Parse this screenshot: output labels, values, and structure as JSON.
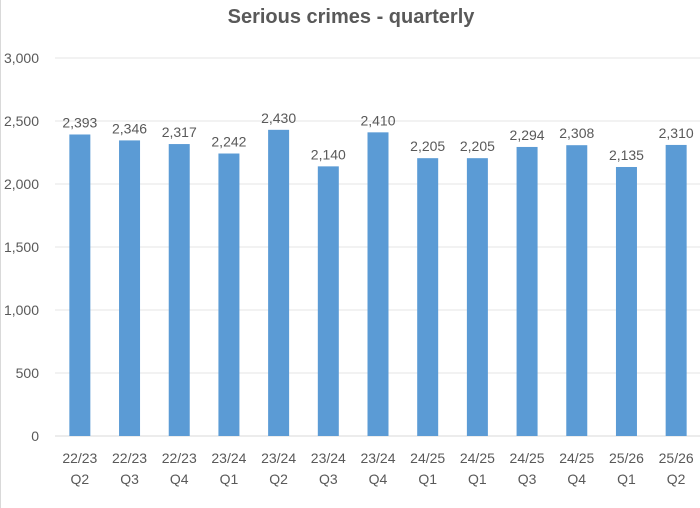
{
  "chart_data": {
    "type": "bar",
    "title": "Serious crimes - quarterly",
    "categories": [
      [
        "22/23",
        "Q2"
      ],
      [
        "22/23",
        "Q3"
      ],
      [
        "22/23",
        "Q4"
      ],
      [
        "23/24",
        "Q1"
      ],
      [
        "23/24",
        "Q2"
      ],
      [
        "23/24",
        "Q3"
      ],
      [
        "23/24",
        "Q4"
      ],
      [
        "24/25",
        "Q1"
      ],
      [
        "24/25",
        "Q1"
      ],
      [
        "24/25",
        "Q3"
      ],
      [
        "24/25",
        "Q4"
      ],
      [
        "25/26",
        "Q1"
      ],
      [
        "25/26",
        "Q2"
      ]
    ],
    "values": [
      2393,
      2346,
      2317,
      2242,
      2430,
      2140,
      2410,
      2205,
      2205,
      2294,
      2308,
      2135,
      2310
    ],
    "value_labels": [
      "2,393",
      "2,346",
      "2,317",
      "2,242",
      "2,430",
      "2,140",
      "2,410",
      "2,205",
      "2,205",
      "2,294",
      "2,308",
      "2,135",
      "2,310"
    ],
    "yticks": [
      0,
      500,
      1000,
      1500,
      2000,
      2500,
      3000
    ],
    "ytick_labels": [
      "0",
      "500",
      "1,000",
      "1,500",
      "2,000",
      "2,500",
      "3,000"
    ],
    "ylim": [
      0,
      3000
    ],
    "xlabel": "",
    "ylabel": "",
    "grid": true,
    "bar_color": "#5b9bd5"
  }
}
